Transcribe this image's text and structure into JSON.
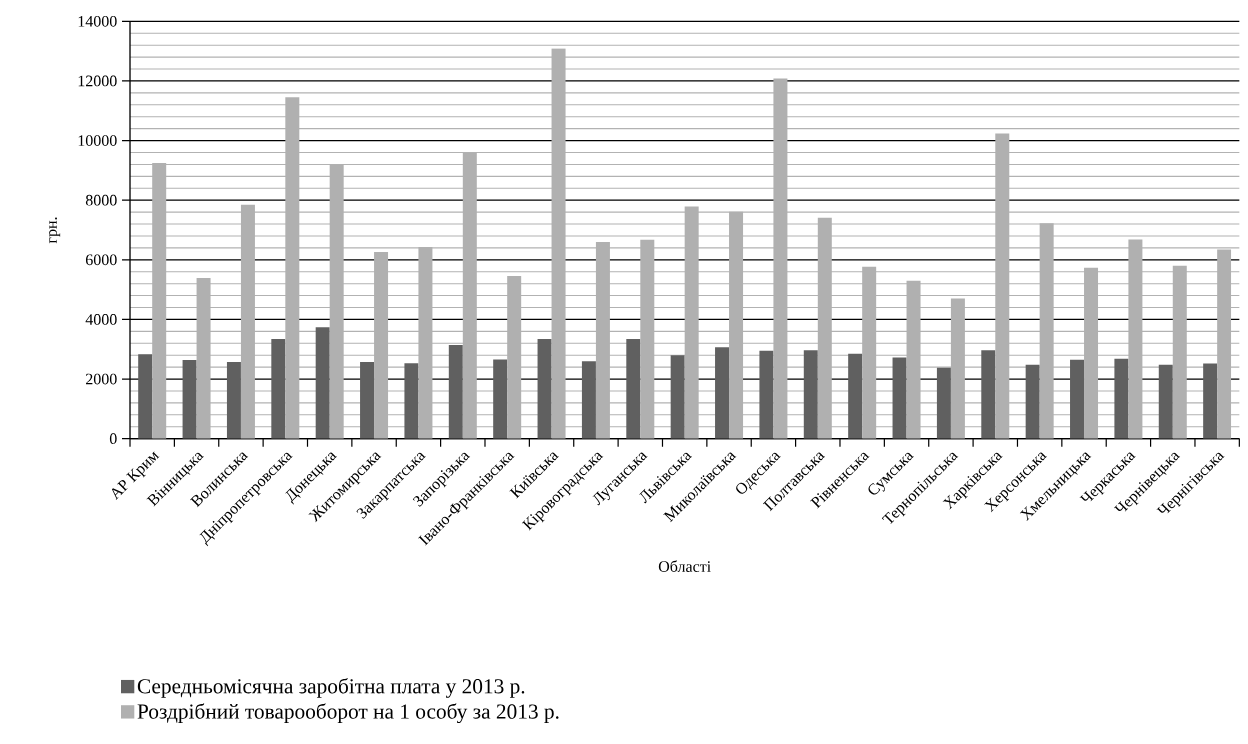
{
  "chart_data": {
    "type": "bar",
    "xlabel": "Області",
    "ylabel": "грн.",
    "categories": [
      "АР Крим",
      "Вінницька",
      "Волинська",
      "Дніпропетровська",
      "Донецька",
      "Житомирська",
      "Закарпатська",
      "Запорізька",
      "Івано-Франківська",
      "Київська",
      "Кіровоградська",
      "Луганська",
      "Львівська",
      "Миколаївська",
      "Одеська",
      "Полтавська",
      "Рівненська",
      "Сумська",
      "Тернопільська",
      "Харківська",
      "Херсонська",
      "Хмельницька",
      "Черкаська",
      "Чернівецька",
      "Чернігівська"
    ],
    "series": [
      {
        "name": "Середньомісячна заробітна плата у 2013 р.",
        "color": "#606060",
        "values": [
          2830,
          2640,
          2570,
          3340,
          3740,
          2570,
          2530,
          3140,
          2660,
          3340,
          2600,
          3340,
          2800,
          3070,
          2950,
          2970,
          2850,
          2720,
          2380,
          2970,
          2480,
          2650,
          2680,
          2480,
          2520
        ]
      },
      {
        "name": "Роздрібний товарооборот на 1 особу за 2013 р.",
        "color": "#b0b0b0",
        "values": [
          9250,
          5390,
          7850,
          11450,
          9200,
          6260,
          6430,
          9610,
          5460,
          13090,
          6600,
          6670,
          7790,
          7610,
          12080,
          7410,
          5770,
          5300,
          4700,
          10240,
          7230,
          5730,
          6680,
          5800,
          6350
        ]
      }
    ],
    "ylim": [
      0,
      14000
    ],
    "yticks": [
      0,
      2000,
      4000,
      6000,
      8000,
      10000,
      12000,
      14000
    ],
    "grid": "y",
    "legend": "bottom left"
  }
}
